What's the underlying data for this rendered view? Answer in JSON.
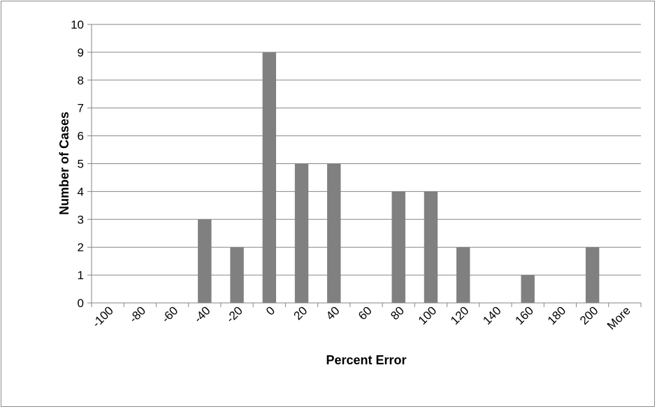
{
  "chart_data": {
    "type": "bar",
    "xlabel": "Percent Error",
    "ylabel": "Number of Cases",
    "categories": [
      "-100",
      "-80",
      "-60",
      "-40",
      "-20",
      "0",
      "20",
      "40",
      "60",
      "80",
      "100",
      "120",
      "140",
      "160",
      "180",
      "200",
      "More"
    ],
    "values": [
      0,
      0,
      0,
      3,
      2,
      9,
      5,
      5,
      0,
      4,
      4,
      2,
      0,
      1,
      0,
      2,
      0
    ],
    "ylim": [
      0,
      10
    ],
    "yticks": [
      "0",
      "1",
      "2",
      "3",
      "4",
      "5",
      "6",
      "7",
      "8",
      "9",
      "10"
    ],
    "grid": "horizontal",
    "legend": "none",
    "colors": {
      "bar": "#808080",
      "grid": "#868686",
      "axis": "#868686",
      "border": "#8c8c8c"
    }
  }
}
